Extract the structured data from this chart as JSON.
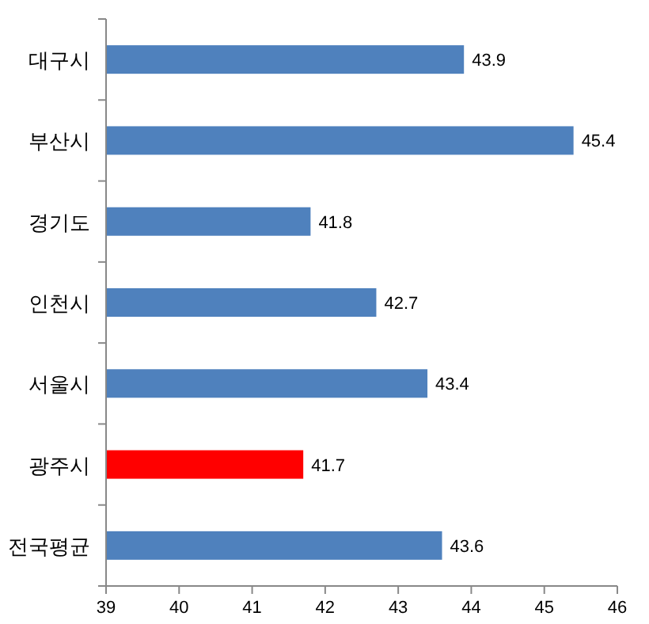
{
  "chart_data": {
    "type": "bar",
    "orientation": "horizontal",
    "categories": [
      "대구시",
      "부산시",
      "경기도",
      "인천시",
      "서울시",
      "광주시",
      "전국평균"
    ],
    "values": [
      43.9,
      45.4,
      41.8,
      42.7,
      43.4,
      41.7,
      43.6
    ],
    "colors": [
      "#4f81bd",
      "#4f81bd",
      "#4f81bd",
      "#4f81bd",
      "#4f81bd",
      "#ff0000",
      "#4f81bd"
    ],
    "xlim": [
      39,
      46
    ],
    "xticks": [
      39,
      40,
      41,
      42,
      43,
      44,
      45,
      46
    ],
    "data_labels": true,
    "grid": false
  }
}
